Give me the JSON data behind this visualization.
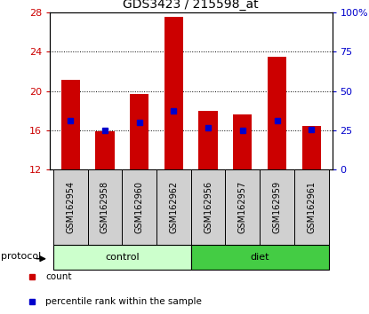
{
  "title": "GDS3423 / 215598_at",
  "samples": [
    "GSM162954",
    "GSM162958",
    "GSM162960",
    "GSM162962",
    "GSM162956",
    "GSM162957",
    "GSM162959",
    "GSM162961"
  ],
  "bar_bottom": 12,
  "bar_tops": [
    21.1,
    15.9,
    19.7,
    27.6,
    18.0,
    17.6,
    23.5,
    16.4
  ],
  "percentile_values": [
    17.0,
    16.0,
    16.8,
    18.0,
    16.3,
    16.0,
    17.0,
    16.1
  ],
  "ylim_left": [
    12,
    28
  ],
  "ylim_right": [
    0,
    100
  ],
  "yticks_left": [
    12,
    16,
    20,
    24,
    28
  ],
  "yticks_right": [
    0,
    25,
    50,
    75,
    100
  ],
  "ytick_labels_right": [
    "0",
    "25",
    "50",
    "75",
    "100%"
  ],
  "bar_color": "#cc0000",
  "percentile_color": "#0000cc",
  "groups": [
    {
      "label": "control",
      "start": 0,
      "end": 4,
      "color": "#ccffcc"
    },
    {
      "label": "diet",
      "start": 4,
      "end": 8,
      "color": "#44cc44"
    }
  ],
  "protocol_label": "protocol",
  "legend_items": [
    {
      "label": "count",
      "color": "#cc0000"
    },
    {
      "label": "percentile rank within the sample",
      "color": "#0000cc"
    }
  ],
  "background_color": "#ffffff",
  "plot_bg_color": "#ffffff",
  "label_color_left": "#cc0000",
  "label_color_right": "#0000cc",
  "sample_box_color": "#d0d0d0"
}
